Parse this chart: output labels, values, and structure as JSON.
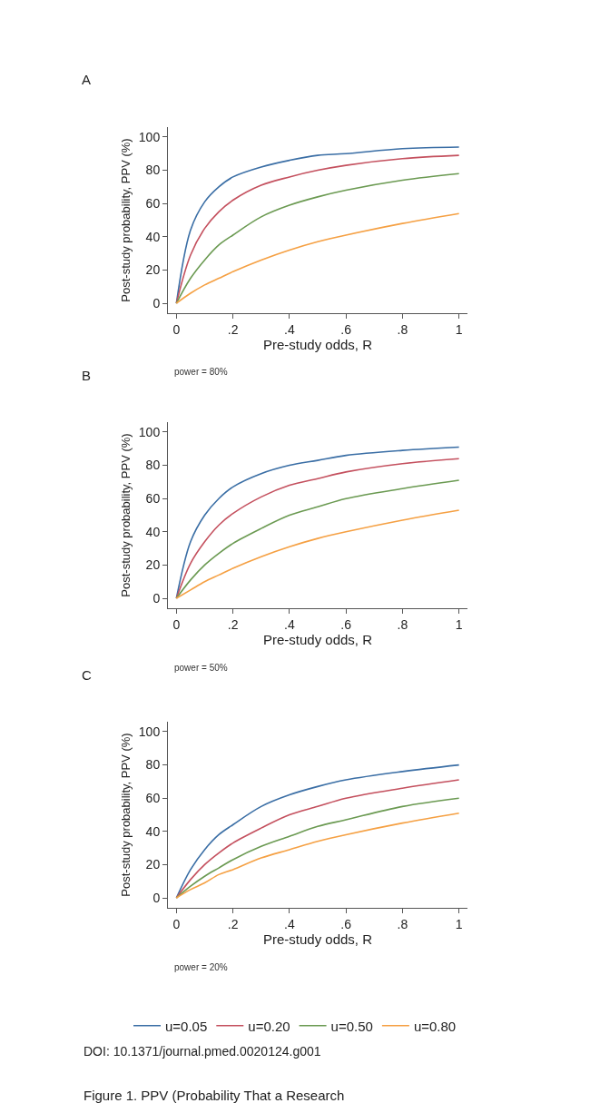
{
  "chart_data": [
    {
      "type": "line",
      "title": "A",
      "xlabel": "Pre-study odds, R",
      "ylabel": "Post-study probability, PPV (%)",
      "annotations": [
        "power = 80%"
      ],
      "x": [
        0,
        0.05,
        0.1,
        0.15,
        0.2,
        0.3,
        0.4,
        0.5,
        0.6,
        0.8,
        1
      ],
      "xlim": [
        -0.03,
        1.03
      ],
      "xticks": [
        0,
        {
          "value": 0.2,
          "label": ".2"
        },
        {
          "value": 0.4,
          "label": ".4"
        },
        {
          "value": 0.6,
          "label": ".6"
        },
        {
          "value": 0.8,
          "label": ".8"
        },
        1
      ],
      "ylim": [
        -6,
        106
      ],
      "yticks": [
        0,
        20,
        40,
        60,
        80,
        100
      ],
      "series": [
        {
          "color": "#3a6ea5",
          "values": [
            0,
            44,
            61,
            70,
            76,
            82,
            86,
            89,
            90,
            93,
            94
          ]
        },
        {
          "color": "#c4505e",
          "values": [
            0,
            29,
            45,
            55,
            62,
            71,
            76,
            80,
            83,
            87,
            89
          ]
        },
        {
          "color": "#6b9a52",
          "values": [
            0,
            15,
            26,
            35,
            41,
            52,
            59,
            64,
            68,
            74,
            78
          ]
        },
        {
          "color": "#f5a043",
          "values": [
            0,
            6,
            11,
            15,
            19,
            26,
            32,
            37,
            41,
            48,
            54
          ]
        }
      ]
    },
    {
      "type": "line",
      "title": "B",
      "xlabel": "Pre-study odds, R",
      "ylabel": "Post-study probability, PPV (%)",
      "annotations": [
        "power = 50%"
      ],
      "x": [
        0,
        0.05,
        0.1,
        0.15,
        0.2,
        0.3,
        0.4,
        0.5,
        0.6,
        0.8,
        1
      ],
      "xlim": [
        -0.03,
        1.03
      ],
      "xticks": [
        0,
        {
          "value": 0.2,
          "label": ".2"
        },
        {
          "value": 0.4,
          "label": ".4"
        },
        {
          "value": 0.6,
          "label": ".6"
        },
        {
          "value": 0.8,
          "label": ".8"
        },
        1
      ],
      "ylim": [
        -6,
        106
      ],
      "yticks": [
        0,
        20,
        40,
        60,
        80,
        100
      ],
      "series": [
        {
          "color": "#3a6ea5",
          "values": [
            0,
            34,
            50,
            60,
            67,
            75,
            80,
            83,
            86,
            89,
            91
          ]
        },
        {
          "color": "#c4505e",
          "values": [
            0,
            21,
            34,
            44,
            51,
            61,
            68,
            72,
            76,
            81,
            84
          ]
        },
        {
          "color": "#6b9a52",
          "values": [
            0,
            11,
            20,
            27,
            33,
            42,
            50,
            55,
            60,
            66,
            71
          ]
        },
        {
          "color": "#f5a043",
          "values": [
            0,
            5,
            10,
            14,
            18,
            25,
            31,
            36,
            40,
            47,
            53
          ]
        }
      ]
    },
    {
      "type": "line",
      "title": "C",
      "xlabel": "Pre-study odds, R",
      "ylabel": "Post-study probability, PPV (%)",
      "annotations": [
        "power = 20%",
        "DOI: 10.1371/journal.pmed.0020124.g001",
        "Figure 1. PPV (Probability That a Research"
      ],
      "x": [
        0,
        0.05,
        0.1,
        0.15,
        0.2,
        0.3,
        0.4,
        0.5,
        0.6,
        0.8,
        1
      ],
      "xlim": [
        -0.03,
        1.03
      ],
      "xticks": [
        0,
        {
          "value": 0.2,
          "label": ".2"
        },
        {
          "value": 0.4,
          "label": ".4"
        },
        {
          "value": 0.6,
          "label": ".6"
        },
        {
          "value": 0.8,
          "label": ".8"
        },
        1
      ],
      "ylim": [
        -6,
        106
      ],
      "yticks": [
        0,
        20,
        40,
        60,
        80,
        100
      ],
      "legend": "bottom",
      "series": [
        {
          "name": "u=0.05",
          "color": "#3a6ea5",
          "values": [
            0,
            17,
            29,
            38,
            44,
            55,
            62,
            67,
            71,
            76,
            80
          ]
        },
        {
          "name": "u=0.20",
          "color": "#c4505e",
          "values": [
            0,
            11,
            20,
            27,
            33,
            42,
            50,
            55,
            60,
            66,
            71
          ]
        },
        {
          "name": "u=0.50",
          "color": "#6b9a52",
          "values": [
            0,
            7,
            13,
            18,
            23,
            31,
            37,
            43,
            47,
            55,
            60
          ]
        },
        {
          "name": "u=0.80",
          "color": "#f5a043",
          "values": [
            0,
            5,
            9,
            14,
            17,
            24,
            29,
            34,
            38,
            45,
            51
          ]
        }
      ]
    }
  ]
}
